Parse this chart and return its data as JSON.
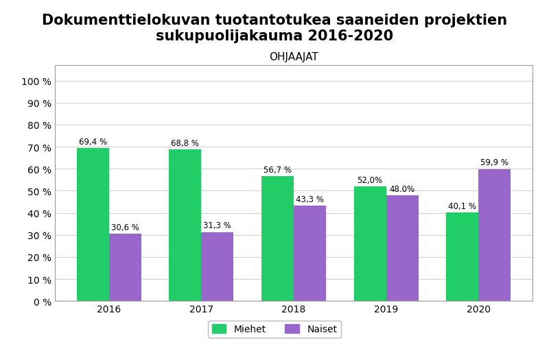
{
  "title": "Dokumenttielokuvan tuotantotukea saaneiden projektien\nsukupuolijakauma 2016-2020",
  "chart_label": "OHJAAJAT",
  "years": [
    "2016",
    "2017",
    "2018",
    "2019",
    "2020"
  ],
  "miehet": [
    69.4,
    68.8,
    56.7,
    52.0,
    40.1
  ],
  "naiset": [
    30.6,
    31.3,
    43.3,
    48.0,
    59.9
  ],
  "miehet_labels": [
    "69,4 %",
    "68,8 %",
    "56,7 %",
    "52,0%",
    "40,1 %"
  ],
  "naiset_labels": [
    "30,6 %",
    "31,3 %",
    "43,3 %",
    "48.0%",
    "59,9 %"
  ],
  "color_miehet": "#22cc66",
  "color_naiset": "#9966cc",
  "bar_width": 0.35,
  "ylim": [
    0,
    107
  ],
  "yticks": [
    0,
    10,
    20,
    30,
    40,
    50,
    60,
    70,
    80,
    90,
    100
  ],
  "ytick_labels": [
    "0 %",
    "10 %",
    "20 %",
    "30 %",
    "40 %",
    "50 %",
    "60 %",
    "70 %",
    "80 %",
    "90 %",
    "100 %"
  ],
  "title_fontsize": 15,
  "chart_label_fontsize": 11,
  "bar_label_fontsize": 8.5,
  "legend_fontsize": 10,
  "tick_fontsize": 10,
  "background_color": "#ffffff",
  "legend_miehet": "Miehet",
  "legend_naiset": "Naiset"
}
